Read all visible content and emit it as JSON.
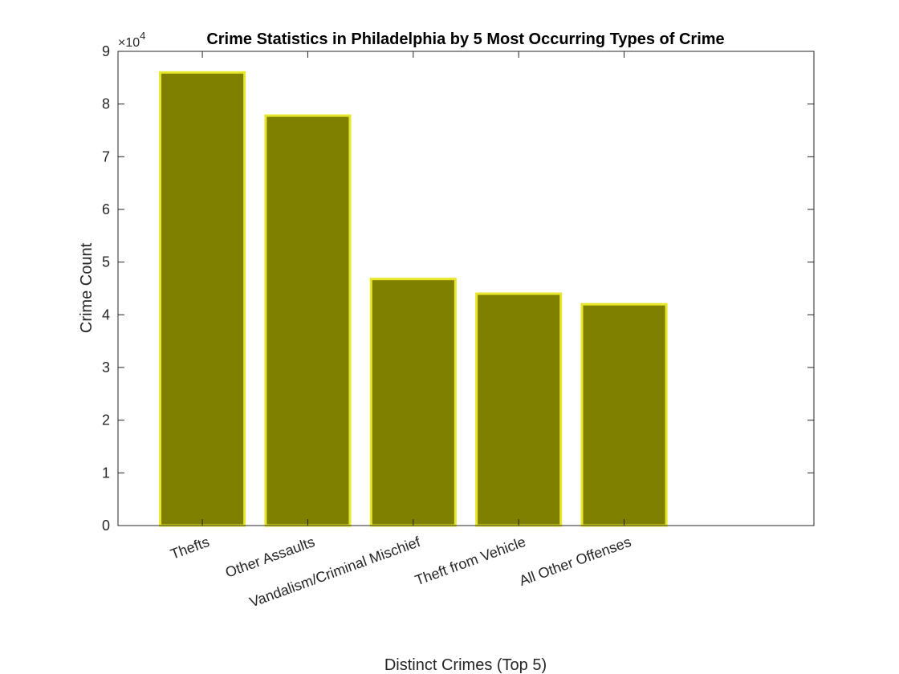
{
  "chart_data": {
    "type": "bar",
    "title": "Crime Statistics in Philadelphia by 5 Most Occurring Types of Crime",
    "xlabel": "Distinct Crimes (Top 5)",
    "ylabel": "Crime Count",
    "categories": [
      "Thefts",
      "Other Assaults",
      "Vandalism/Criminal Mischief",
      "Theft from Vehicle",
      "All Other Offenses"
    ],
    "values": [
      86000,
      77800,
      46800,
      44000,
      42000
    ],
    "ylim": [
      0,
      90000
    ],
    "yticks": [
      0,
      10000,
      20000,
      30000,
      40000,
      50000,
      60000,
      70000,
      80000,
      90000
    ],
    "ytick_labels": [
      "0",
      "1",
      "2",
      "3",
      "4",
      "5",
      "6",
      "7",
      "8",
      "9"
    ],
    "y_exponent_label": {
      "base": "×10",
      "power": "4"
    },
    "grid": false,
    "bar_fill_color": "#808000",
    "bar_edge_color": "#e6e62a",
    "axis_color": "#262626"
  }
}
